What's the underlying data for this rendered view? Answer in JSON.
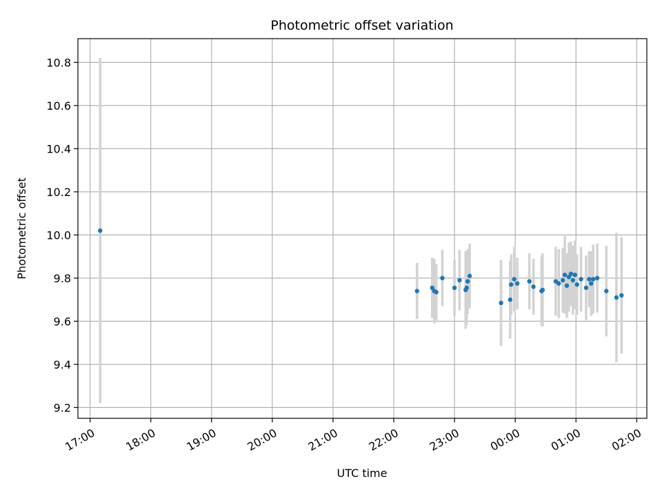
{
  "chart_data": {
    "type": "scatter",
    "title": "Photometric offset variation",
    "xlabel": "UTC time",
    "ylabel": "Photometric offset",
    "x_tick_labels": [
      "17:00",
      "18:00",
      "19:00",
      "20:00",
      "21:00",
      "22:00",
      "23:00",
      "00:00",
      "01:00",
      "02:00"
    ],
    "y_ticks": [
      9.2,
      9.4,
      9.6,
      9.8,
      10.0,
      10.2,
      10.4,
      10.6,
      10.8
    ],
    "y_tick_labels": [
      "9.2",
      "9.4",
      "9.6",
      "9.8",
      "10.0",
      "10.2",
      "10.4",
      "10.6",
      "10.8"
    ],
    "xlim": [
      "16:48",
      "02:10"
    ],
    "ylim": [
      9.15,
      10.91
    ],
    "grid": true,
    "marker_color": "#1f77b4",
    "errorbar_color": "#d3d3d3",
    "points": [
      {
        "x": "17:10",
        "y": 10.02,
        "err": 0.8
      },
      {
        "x": "22:23",
        "y": 9.74,
        "err": 0.13
      },
      {
        "x": "22:38",
        "y": 9.755,
        "err": 0.14
      },
      {
        "x": "22:40",
        "y": 9.74,
        "err": 0.15
      },
      {
        "x": "22:42",
        "y": 9.735,
        "err": 0.13
      },
      {
        "x": "22:48",
        "y": 9.8,
        "err": 0.13
      },
      {
        "x": "23:00",
        "y": 9.755,
        "err": 0.13
      },
      {
        "x": "23:05",
        "y": 9.79,
        "err": 0.14
      },
      {
        "x": "23:11",
        "y": 9.745,
        "err": 0.18
      },
      {
        "x": "23:12",
        "y": 9.755,
        "err": 0.17
      },
      {
        "x": "23:13",
        "y": 9.785,
        "err": 0.15
      },
      {
        "x": "23:15",
        "y": 9.81,
        "err": 0.15
      },
      {
        "x": "23:46",
        "y": 9.685,
        "err": 0.2
      },
      {
        "x": "23:55",
        "y": 9.7,
        "err": 0.18
      },
      {
        "x": "23:56",
        "y": 9.77,
        "err": 0.14
      },
      {
        "x": "23:59",
        "y": 9.795,
        "err": 0.15
      },
      {
        "x": "00:02",
        "y": 9.775,
        "err": 0.12
      },
      {
        "x": "00:14",
        "y": 9.785,
        "err": 0.13
      },
      {
        "x": "00:18",
        "y": 9.76,
        "err": 0.13
      },
      {
        "x": "00:26",
        "y": 9.74,
        "err": 0.16
      },
      {
        "x": "00:27",
        "y": 9.745,
        "err": 0.17
      },
      {
        "x": "00:40",
        "y": 9.785,
        "err": 0.16
      },
      {
        "x": "00:43",
        "y": 9.775,
        "err": 0.16
      },
      {
        "x": "00:47",
        "y": 9.79,
        "err": 0.15
      },
      {
        "x": "00:49",
        "y": 9.815,
        "err": 0.18
      },
      {
        "x": "00:51",
        "y": 9.765,
        "err": 0.15
      },
      {
        "x": "00:53",
        "y": 9.805,
        "err": 0.16
      },
      {
        "x": "00:55",
        "y": 9.82,
        "err": 0.15
      },
      {
        "x": "00:57",
        "y": 9.79,
        "err": 0.16
      },
      {
        "x": "00:59",
        "y": 9.815,
        "err": 0.16
      },
      {
        "x": "01:01",
        "y": 9.77,
        "err": 0.14
      },
      {
        "x": "01:05",
        "y": 9.795,
        "err": 0.15
      },
      {
        "x": "01:10",
        "y": 9.755,
        "err": 0.15
      },
      {
        "x": "01:13",
        "y": 9.795,
        "err": 0.13
      },
      {
        "x": "01:15",
        "y": 9.775,
        "err": 0.15
      },
      {
        "x": "01:17",
        "y": 9.795,
        "err": 0.16
      },
      {
        "x": "01:21",
        "y": 9.8,
        "err": 0.16
      },
      {
        "x": "01:30",
        "y": 9.74,
        "err": 0.21
      },
      {
        "x": "01:40",
        "y": 9.71,
        "err": 0.3
      },
      {
        "x": "01:45",
        "y": 9.72,
        "err": 0.27
      }
    ]
  }
}
